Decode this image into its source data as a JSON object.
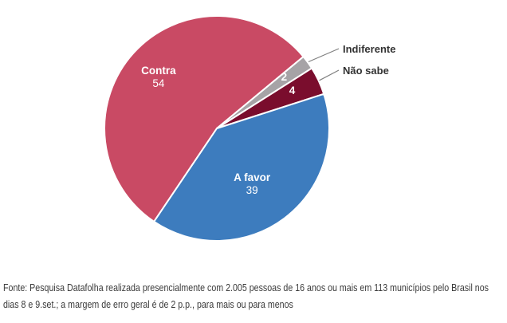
{
  "chart_data": {
    "type": "pie",
    "title": "",
    "slices": [
      {
        "label": "Contra",
        "value": 54,
        "color": "#c94a64",
        "text_color": "#ffffff",
        "label_placement": "inside"
      },
      {
        "label": "Indiferente",
        "value": 2,
        "color": "#a6a3a6",
        "text_color": "#ffffff",
        "label_placement": "outside"
      },
      {
        "label": "Não sabe",
        "value": 4,
        "color": "#7a0d2d",
        "text_color": "#ffffff",
        "label_placement": "outside"
      },
      {
        "label": "A favor",
        "value": 39,
        "color": "#3d7cbe",
        "text_color": "#ffffff",
        "label_placement": "inside"
      }
    ],
    "start_angle_deg": 214,
    "slice_gap_color": "#ffffff",
    "leader_line_color": "#808080",
    "outside_label_color": "#333333",
    "legend_position": "none",
    "background": "#ffffff"
  },
  "footer": {
    "lines": [
      "Fonte: Pesquisa Datafolha realizada presencialmente com 2.005 pessoas de 16 anos ou mais em 113 municípios pelo Brasil nos",
      "dias 8 e 9.set.; a margem de erro geral é de 2 p.p., para mais ou para menos"
    ]
  }
}
